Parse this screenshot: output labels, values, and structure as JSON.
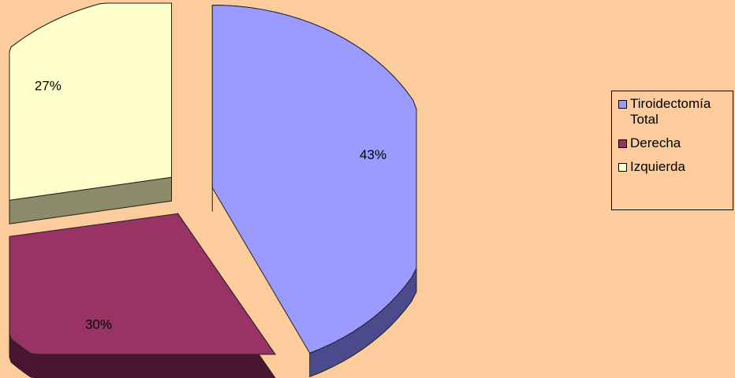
{
  "chart_data": {
    "type": "pie",
    "title": "",
    "slices": [
      {
        "label": "Tiroidectomía Total",
        "value": 43,
        "value_label": "43%",
        "color": "#9b9bff",
        "side_color": "#4a4a8c"
      },
      {
        "label": "Derecha",
        "value": 30,
        "value_label": "30%",
        "color": "#993366",
        "side_color": "#4a1530"
      },
      {
        "label": "Izquierda",
        "value": 27,
        "value_label": "27%",
        "color": "#ffffcc",
        "side_color": "#8c8c6a"
      }
    ],
    "exploded": true,
    "three_d": true,
    "legend_position": "right"
  },
  "colors": {
    "background": "#fccc9c"
  }
}
